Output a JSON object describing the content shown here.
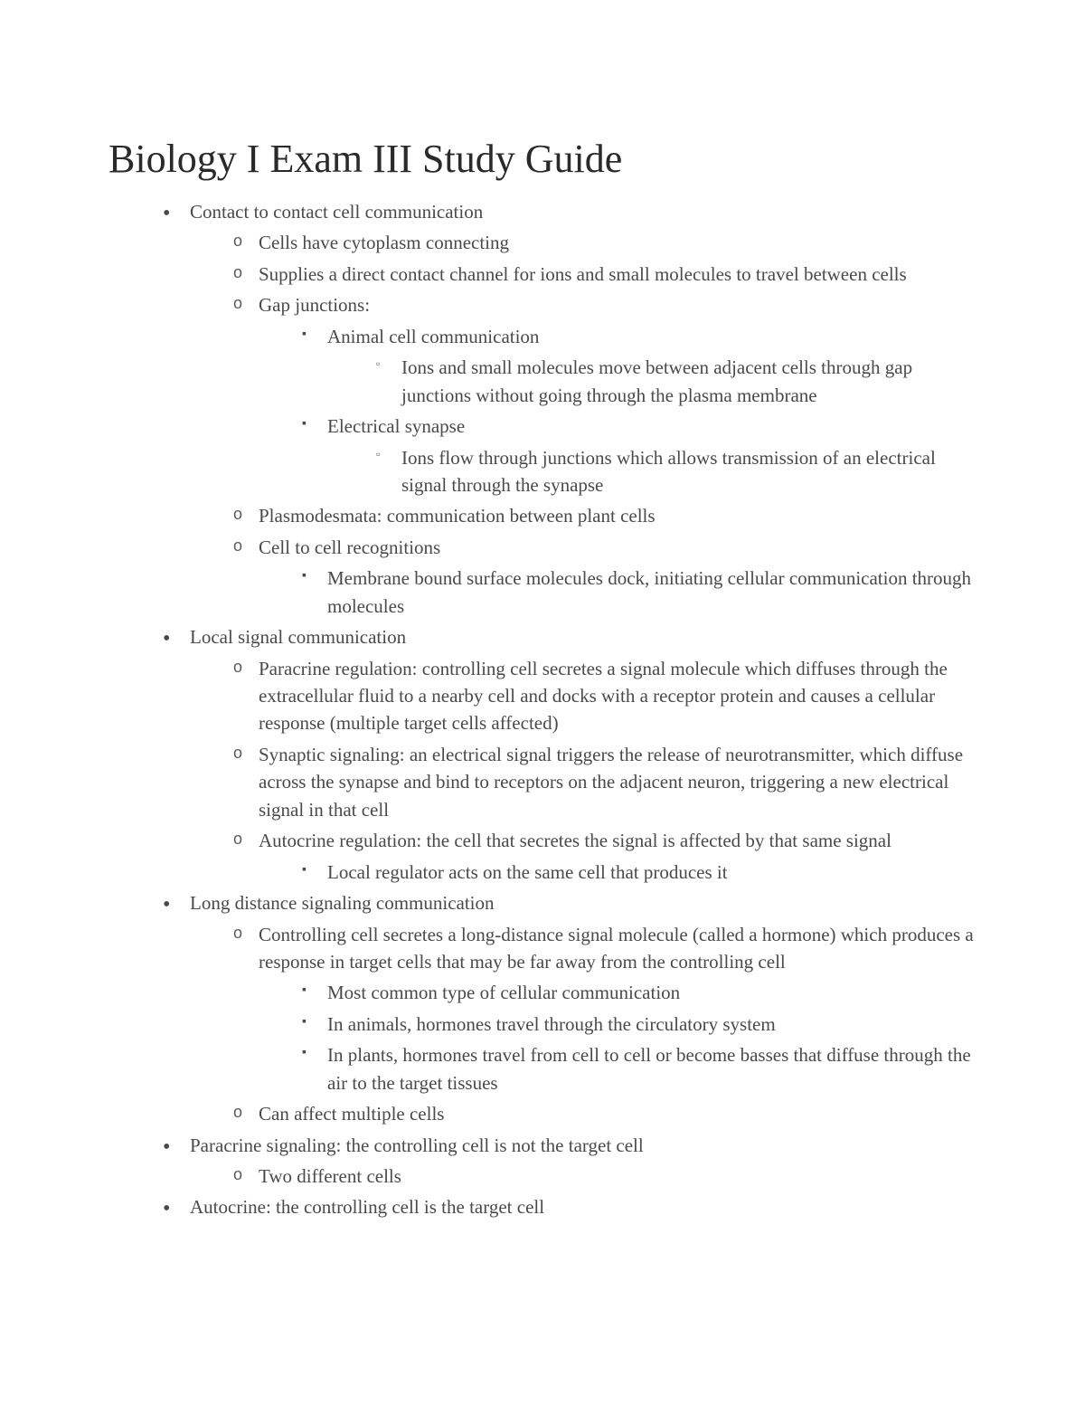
{
  "title": "Biology I Exam III Study Guide",
  "colors": {
    "background": "#ffffff",
    "heading": "#2a2a2a",
    "body_text": "#4a4a4a"
  },
  "typography": {
    "heading_font": "Georgia",
    "heading_size_pt": 33,
    "body_font": "Georgia",
    "body_size_pt": 16,
    "line_height": 1.45
  },
  "outline": [
    {
      "text": "Contact to contact cell communication",
      "children": [
        {
          "text": "Cells have cytoplasm connecting"
        },
        {
          "text": "Supplies a direct contact channel for ions and small molecules to travel between cells"
        },
        {
          "text": "Gap junctions:",
          "children": [
            {
              "text": "Animal cell communication",
              "children": [
                {
                  "text": "Ions and small molecules move between adjacent cells through gap junctions without going through the plasma membrane"
                }
              ]
            },
            {
              "text": "Electrical synapse",
              "children": [
                {
                  "text": "Ions flow through junctions which allows transmission of an electrical signal through the synapse"
                }
              ]
            }
          ]
        },
        {
          "text": "Plasmodesmata: communication between plant cells"
        },
        {
          "text": "Cell to cell recognitions",
          "children": [
            {
              "text": "Membrane bound surface molecules dock, initiating cellular communication through molecules"
            }
          ]
        }
      ]
    },
    {
      "text": "Local signal communication",
      "children": [
        {
          "text": "Paracrine regulation: controlling cell secretes a signal molecule which diffuses through the extracellular fluid to a nearby cell and docks with a receptor protein and causes a cellular response (multiple target cells affected)"
        },
        {
          "text": "Synaptic signaling: an electrical signal triggers the release of neurotransmitter, which diffuse across the synapse and bind to receptors on the adjacent neuron, triggering a new electrical signal in that cell"
        },
        {
          "text": "Autocrine regulation: the cell that secretes the signal is affected by that same signal",
          "children": [
            {
              "text": "Local regulator acts on the same cell that produces it"
            }
          ]
        }
      ]
    },
    {
      "text": "Long distance signaling communication",
      "children": [
        {
          "text": "Controlling cell secretes a long-distance signal molecule (called a hormone) which produces a response in target cells that may be far away from the controlling cell",
          "children": [
            {
              "text": "Most common type of cellular communication"
            },
            {
              "text": "In animals, hormones travel through the circulatory system"
            },
            {
              "text": "In plants, hormones travel from cell to cell or become basses that diffuse through the air to the target tissues"
            }
          ]
        },
        {
          "text": "Can affect multiple cells"
        }
      ]
    },
    {
      "text": "Paracrine signaling: the controlling cell is not the target cell",
      "children": [
        {
          "text": "Two different cells"
        }
      ]
    },
    {
      "text": "Autocrine: the controlling cell is the target cell"
    }
  ]
}
